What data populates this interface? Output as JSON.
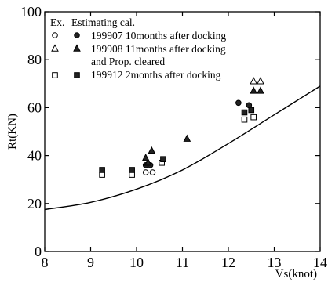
{
  "chart_data": {
    "type": "scatter",
    "xlabel": "Vs(knot)",
    "ylabel": "Rt(KN)",
    "xlim": [
      8,
      14
    ],
    "ylim": [
      0,
      100
    ],
    "x_ticks": [
      8,
      9,
      10,
      11,
      12,
      13,
      14
    ],
    "y_ticks": [
      0,
      20,
      40,
      60,
      80,
      100
    ],
    "grid": false,
    "legend": {
      "placement": "top-left",
      "header_ex": "Ex.",
      "header_est": "Estimating cal.",
      "entries": [
        {
          "label": "199907 10months after docking"
        },
        {
          "label": "199908 11months after docking"
        },
        {
          "label": "and Prop. cleared"
        },
        {
          "label": "199912  2months after docking"
        }
      ]
    },
    "series": [
      {
        "marker": "circle",
        "points": [
          {
            "x": 10.2,
            "y": 33,
            "filled": false
          },
          {
            "x": 10.35,
            "y": 33,
            "filled": false
          },
          {
            "x": 10.2,
            "y": 36,
            "filled": true
          },
          {
            "x": 10.3,
            "y": 36,
            "filled": true
          },
          {
            "x": 12.22,
            "y": 62,
            "filled": true
          },
          {
            "x": 12.45,
            "y": 61,
            "filled": true
          }
        ]
      },
      {
        "marker": "triangle",
        "points": [
          {
            "x": 12.55,
            "y": 71,
            "filled": false
          },
          {
            "x": 12.7,
            "y": 71,
            "filled": false
          },
          {
            "x": 10.2,
            "y": 39,
            "filled": true
          },
          {
            "x": 10.33,
            "y": 42,
            "filled": true
          },
          {
            "x": 10.25,
            "y": 37,
            "filled": true
          },
          {
            "x": 11.1,
            "y": 47,
            "filled": true
          },
          {
            "x": 12.55,
            "y": 67,
            "filled": true
          },
          {
            "x": 12.7,
            "y": 67,
            "filled": true
          }
        ]
      },
      {
        "marker": "square",
        "points": [
          {
            "x": 9.25,
            "y": 32,
            "filled": false
          },
          {
            "x": 9.9,
            "y": 32,
            "filled": false
          },
          {
            "x": 10.55,
            "y": 37,
            "filled": false
          },
          {
            "x": 12.35,
            "y": 55,
            "filled": false
          },
          {
            "x": 12.55,
            "y": 56,
            "filled": false
          },
          {
            "x": 9.25,
            "y": 34,
            "filled": true
          },
          {
            "x": 9.9,
            "y": 34,
            "filled": true
          },
          {
            "x": 10.58,
            "y": 38.5,
            "filled": true
          },
          {
            "x": 12.35,
            "y": 58,
            "filled": true
          },
          {
            "x": 12.5,
            "y": 59,
            "filled": true
          }
        ]
      },
      {
        "type": "line",
        "points": [
          {
            "x": 8,
            "y": 17.5
          },
          {
            "x": 9,
            "y": 20.5
          },
          {
            "x": 10,
            "y": 26
          },
          {
            "x": 11,
            "y": 34
          },
          {
            "x": 12,
            "y": 45
          },
          {
            "x": 13,
            "y": 57
          },
          {
            "x": 14,
            "y": 69
          }
        ]
      }
    ]
  }
}
